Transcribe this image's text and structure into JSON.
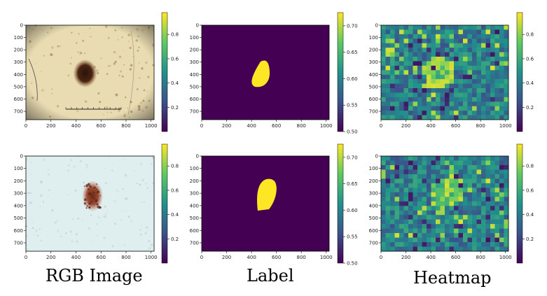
{
  "captions": [
    "RGB Image",
    "Label",
    "Heatmap"
  ],
  "panels": {
    "x_ticks": [
      "0",
      "200",
      "400",
      "600",
      "800",
      "1000"
    ],
    "x_tick_values": [
      0,
      200,
      400,
      600,
      800,
      1000
    ],
    "x_range": [
      0,
      1024
    ],
    "y_ticks": [
      "0",
      "100",
      "200",
      "300",
      "400",
      "500",
      "600",
      "700"
    ],
    "y_tick_values": [
      0,
      100,
      200,
      300,
      400,
      500,
      600,
      700
    ],
    "y_range": [
      0,
      768
    ]
  },
  "colorbars": {
    "rgb": {
      "ticks": [
        "0.2",
        "0.4",
        "0.6",
        "0.8"
      ],
      "values": [
        0.2,
        0.4,
        0.6,
        0.8
      ],
      "range": [
        0.0,
        0.98
      ]
    },
    "label": {
      "ticks": [
        "0.50",
        "0.55",
        "0.60",
        "0.65",
        "0.70"
      ],
      "values": [
        0.5,
        0.55,
        0.6,
        0.65,
        0.7
      ],
      "range": [
        0.5,
        0.725
      ]
    },
    "heatmap": {
      "ticks": [
        "0.2",
        "0.4",
        "0.6",
        "0.8"
      ],
      "values": [
        0.2,
        0.4,
        0.6,
        0.8
      ],
      "range": [
        0.0,
        0.98
      ]
    }
  },
  "colors": {
    "viridis_low": "#440154",
    "viridis_high": "#fde725",
    "rgb_bg_row1": "#e9dcb2",
    "rgb_bg_row2": "#dfeeee",
    "lesion_dark": "#3a1c10",
    "lesion_red": "#8a3a22"
  }
}
